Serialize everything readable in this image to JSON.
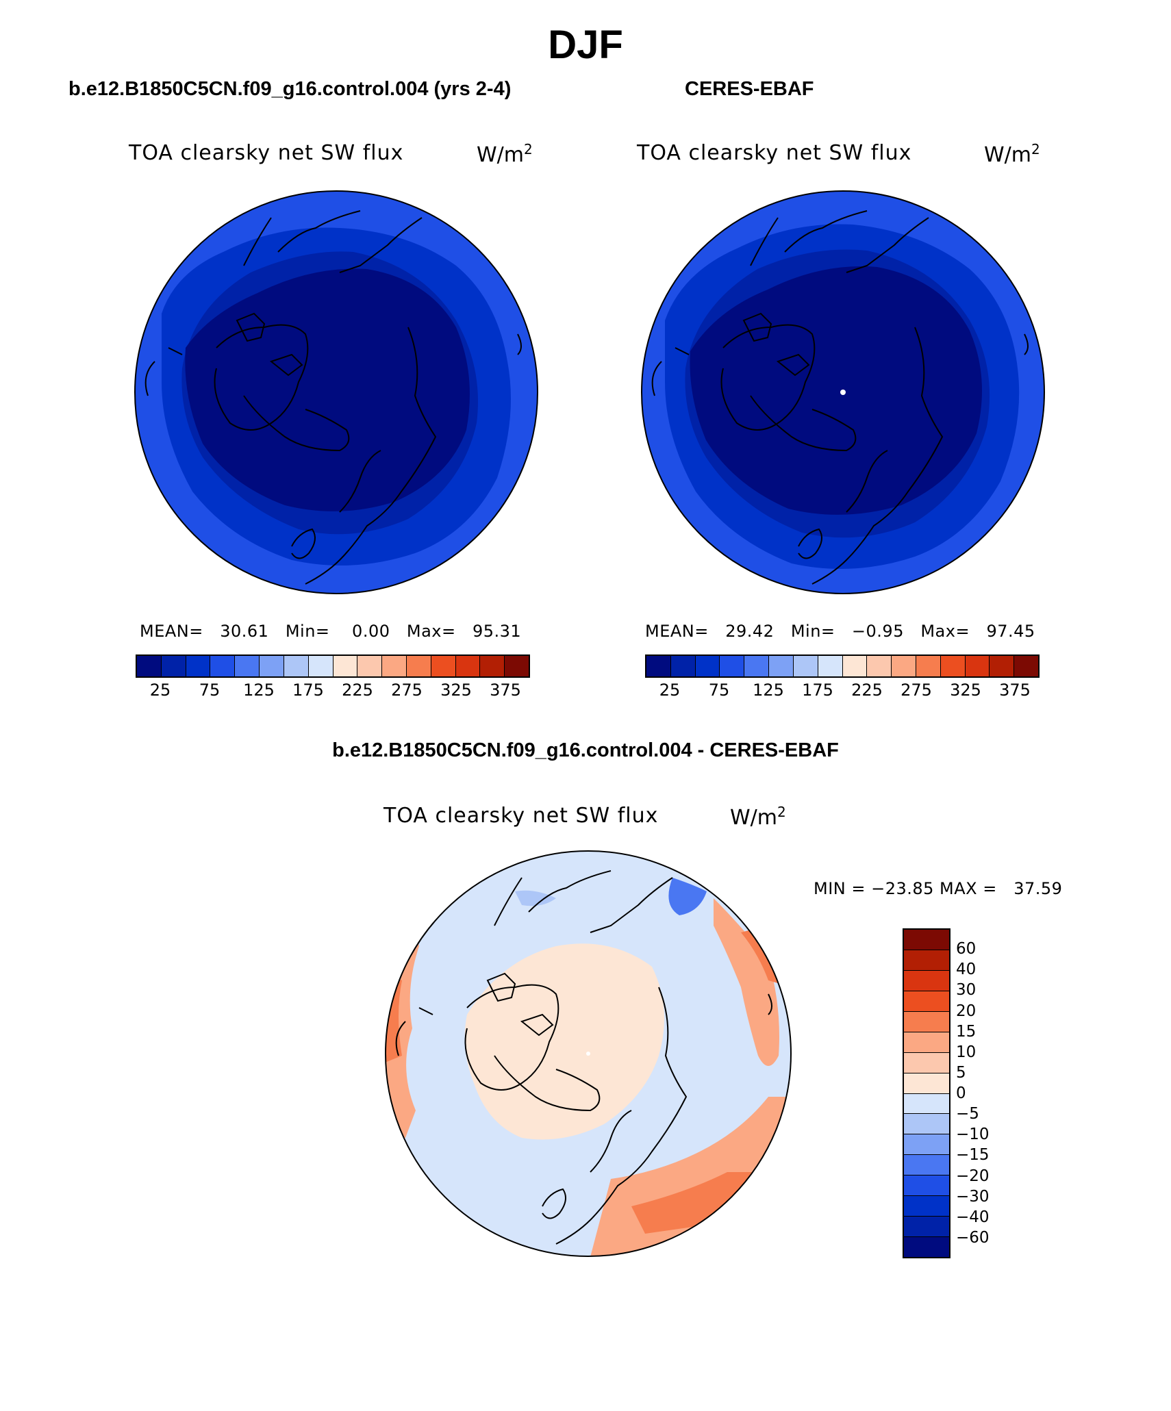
{
  "season": "DJF",
  "panels": {
    "model": {
      "header": "b.e12.B1850C5CN.f09_g16.control.004 (yrs 2-4)",
      "variable": "TOA clearsky net SW flux",
      "units": "W/m",
      "units_exp": "2",
      "stats_text": "MEAN=   30.61   Min=    0.00   Max=   95.31"
    },
    "obs": {
      "header": "CERES-EBAF",
      "variable": "TOA clearsky net SW flux",
      "units": "W/m",
      "units_exp": "2",
      "stats_text": "MEAN=   29.42   Min=   −0.95   Max=   97.45"
    },
    "diff": {
      "header": "b.e12.B1850C5CN.f09_g16.control.004 - CERES-EBAF",
      "variable": "TOA clearsky net SW flux",
      "units": "W/m",
      "units_exp": "2",
      "stats_text": "MIN = −23.85 MAX =   37.59"
    }
  },
  "colorbars": {
    "absolute": {
      "colors": [
        "#000b7f",
        "#0022a8",
        "#0032c8",
        "#1f4fe6",
        "#4a77f2",
        "#7da1f5",
        "#adc6f7",
        "#d6e5fb",
        "#fde6d5",
        "#fcc8ae",
        "#fba883",
        "#f67d4e",
        "#ec4f20",
        "#d93510",
        "#b21f04",
        "#7c0a03"
      ],
      "tick_labels": [
        "25",
        "75",
        "125",
        "175",
        "225",
        "275",
        "325",
        "375"
      ]
    },
    "difference": {
      "colors": [
        "#000b7f",
        "#0022a8",
        "#0032c8",
        "#1f4fe6",
        "#4a77f2",
        "#7da1f5",
        "#adc6f7",
        "#d6e5fb",
        "#fde6d5",
        "#fcc8ae",
        "#fba883",
        "#f67d4e",
        "#ec4f20",
        "#d93510",
        "#b21f04",
        "#7c0a03"
      ],
      "tick_labels": [
        "60",
        "40",
        "30",
        "20",
        "15",
        "10",
        "5",
        "0",
        "−5",
        "−10",
        "−15",
        "−20",
        "−30",
        "−40",
        "−60"
      ]
    }
  },
  "map_colors": {
    "outer_ring": "#1f4fe6",
    "mid_ring": "#0032c8",
    "inner": "#0022a8",
    "core": "#000b7f",
    "diff_background": "#d6e5fb",
    "diff_positive_light": "#fde6d5",
    "diff_positive_mid": "#fba883",
    "diff_positive_strong": "#f67d4e",
    "diff_negative": "#4a77f2",
    "coastline": "#000000"
  }
}
